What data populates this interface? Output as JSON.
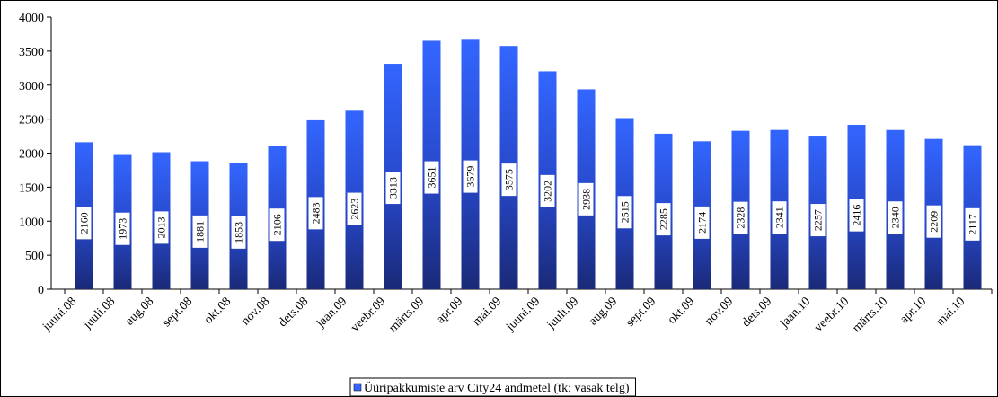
{
  "chart_data": {
    "type": "bar",
    "categories": [
      "juuni.08",
      "juuli.08",
      "aug.08",
      "sept.08",
      "okt.08",
      "nov.08",
      "dets.08",
      "jaan.09",
      "veebr.09",
      "märts.09",
      "apr.09",
      "mai.09",
      "juuni.09",
      "juuli.09",
      "aug.09",
      "sept.09",
      "okt.09",
      "nov.09",
      "dets.09",
      "jaan.10",
      "veebr.10",
      "märts.10",
      "apr.10",
      "mai.10"
    ],
    "series": [
      {
        "name": "Üüripakkumiste arv City24 andmetel (tk; vasak telg)",
        "color": "#3366ff",
        "values": [
          2160,
          1973,
          2013,
          1881,
          1853,
          2106,
          2483,
          2623,
          3313,
          3651,
          3679,
          3575,
          3202,
          2938,
          2515,
          2285,
          2174,
          2328,
          2341,
          2257,
          2416,
          2340,
          2209,
          2117
        ]
      }
    ],
    "ylim": [
      0,
      4000
    ],
    "yticks": [
      0,
      500,
      1000,
      1500,
      2000,
      2500,
      3000,
      3500,
      4000
    ],
    "grid": false
  }
}
